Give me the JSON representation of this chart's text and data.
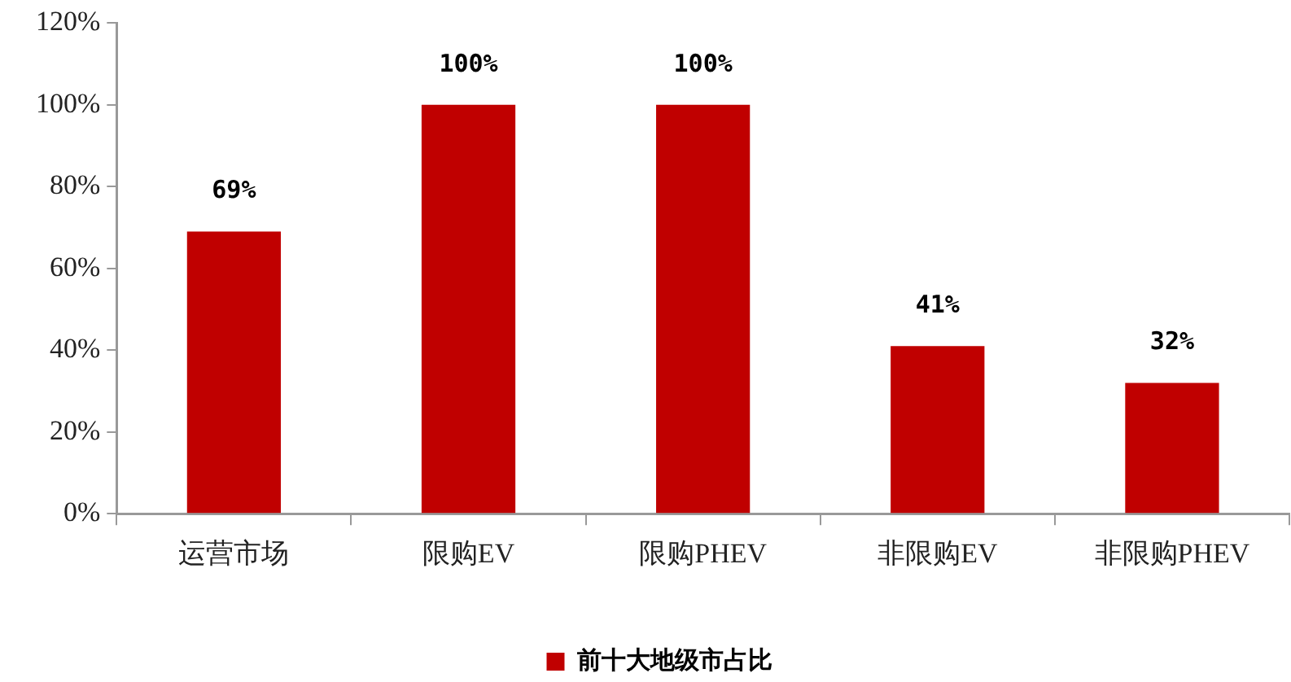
{
  "chart_data": {
    "type": "bar",
    "categories": [
      "运营市场",
      "限购EV",
      "限购PHEV",
      "非限购EV",
      "非限购PHEV"
    ],
    "series": [
      {
        "name": "前十大地级市占比",
        "color": "#c00000",
        "values": [
          69,
          100,
          100,
          41,
          32
        ],
        "value_labels": [
          "69%",
          "100%",
          "100%",
          "41%",
          "32%"
        ]
      }
    ],
    "ylim": [
      0,
      120
    ],
    "yticks": [
      {
        "value": 0,
        "label": "0%"
      },
      {
        "value": 20,
        "label": "20%"
      },
      {
        "value": 40,
        "label": "40%"
      },
      {
        "value": 60,
        "label": "60%"
      },
      {
        "value": 80,
        "label": "80%"
      },
      {
        "value": 100,
        "label": "100%"
      },
      {
        "value": 120,
        "label": "120%"
      }
    ],
    "legend": "bottom"
  }
}
